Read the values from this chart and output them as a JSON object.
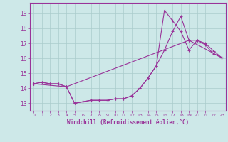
{
  "xlabel": "Windchill (Refroidissement éolien,°C)",
  "background_color": "#cde8e8",
  "line_color": "#993399",
  "grid_color": "#aacccc",
  "xlim": [
    -0.5,
    23.5
  ],
  "ylim": [
    12.5,
    19.7
  ],
  "yticks": [
    13,
    14,
    15,
    16,
    17,
    18,
    19
  ],
  "xticks": [
    0,
    1,
    2,
    3,
    4,
    5,
    6,
    7,
    8,
    9,
    10,
    11,
    12,
    13,
    14,
    15,
    16,
    17,
    18,
    19,
    20,
    21,
    22,
    23
  ],
  "series1_x": [
    0,
    1,
    2,
    3,
    4,
    5,
    6,
    7,
    8,
    9,
    10,
    11,
    12,
    13,
    14,
    15,
    16,
    17,
    18,
    19,
    20,
    21,
    22,
    23
  ],
  "series1_y": [
    14.3,
    14.4,
    14.3,
    14.3,
    14.1,
    13.0,
    13.1,
    13.2,
    13.2,
    13.2,
    13.3,
    13.3,
    13.5,
    14.0,
    14.7,
    15.5,
    19.2,
    18.5,
    17.8,
    16.55,
    17.2,
    17.0,
    16.5,
    16.05
  ],
  "series2_x": [
    0,
    1,
    2,
    3,
    4,
    5,
    6,
    7,
    8,
    9,
    10,
    11,
    12,
    13,
    14,
    15,
    16,
    17,
    18,
    19,
    20,
    21,
    22,
    23
  ],
  "series2_y": [
    14.3,
    14.4,
    14.3,
    14.3,
    14.1,
    13.0,
    13.1,
    13.2,
    13.2,
    13.2,
    13.3,
    13.3,
    13.5,
    14.0,
    14.7,
    15.5,
    16.55,
    17.8,
    18.8,
    17.2,
    17.2,
    16.9,
    16.3,
    16.05
  ],
  "series3_x": [
    0,
    4,
    19,
    23
  ],
  "series3_y": [
    14.3,
    14.1,
    17.2,
    16.05
  ]
}
